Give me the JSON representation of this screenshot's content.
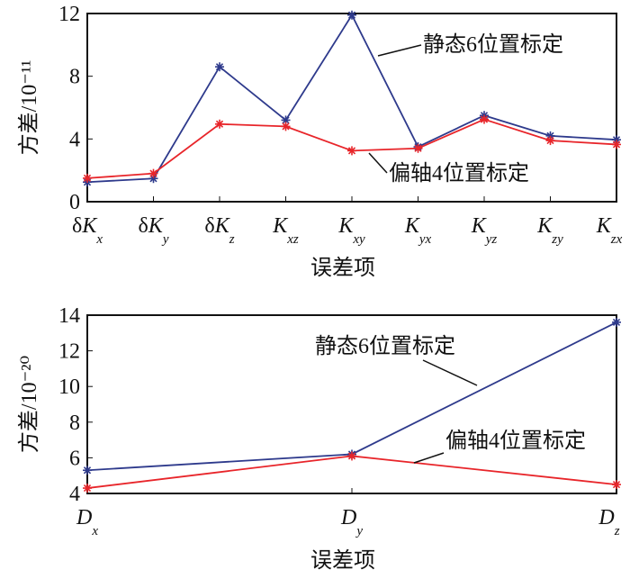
{
  "chart_data": [
    {
      "type": "line",
      "ylabel": "方差/10⁻¹¹",
      "xlabel": "误差项",
      "categories": [
        "δK_x",
        "δK_y",
        "δK_z",
        "K_xz",
        "K_xy",
        "K_yx",
        "K_yz",
        "K_zy",
        "K_zx"
      ],
      "ylim": [
        0,
        12
      ],
      "yticks": [
        "0",
        "4",
        "8",
        "12"
      ],
      "series": [
        {
          "name": "静态6位置标定",
          "color": "#2e3a8c",
          "values": [
            1.25,
            1.48,
            8.6,
            5.2,
            11.9,
            3.5,
            5.5,
            4.2,
            3.95
          ]
        },
        {
          "name": "偏轴4位置标定",
          "color": "#e8252a",
          "values": [
            1.5,
            1.8,
            4.95,
            4.8,
            3.25,
            3.4,
            5.25,
            3.9,
            3.65
          ]
        }
      ]
    },
    {
      "type": "line",
      "ylabel": "方差/10⁻²⁰",
      "xlabel": "误差项",
      "categories": [
        "D_x",
        "D_y",
        "D_z"
      ],
      "ylim": [
        4,
        14
      ],
      "yticks": [
        "4",
        "6",
        "8",
        "10",
        "12",
        "14"
      ],
      "series": [
        {
          "name": "静态6位置标定",
          "color": "#2e3a8c",
          "values": [
            5.3,
            6.2,
            13.6
          ]
        },
        {
          "name": "偏轴4位置标定",
          "color": "#e8252a",
          "values": [
            4.3,
            6.1,
            4.5
          ]
        }
      ]
    }
  ]
}
